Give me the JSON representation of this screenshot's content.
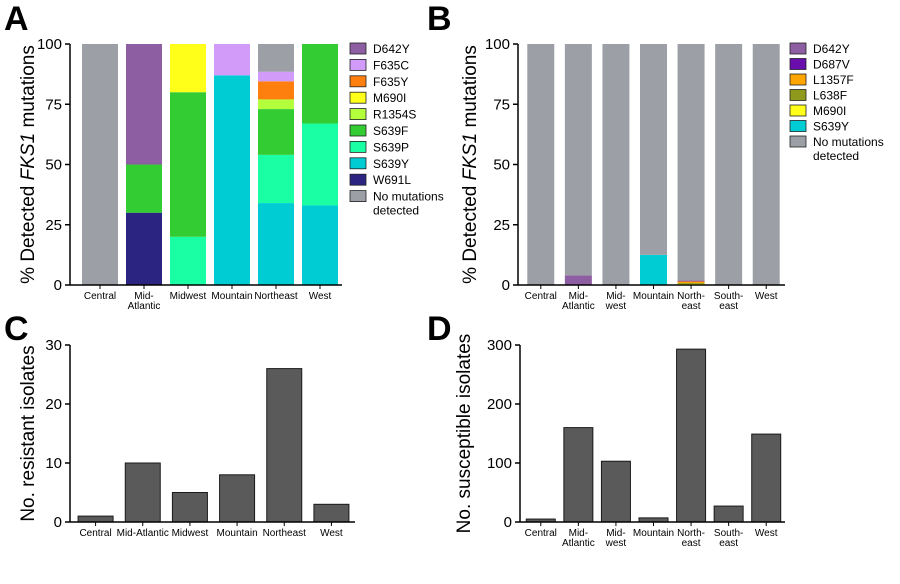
{
  "chart_data": [
    {
      "panel": "A",
      "type": "bar",
      "stacked": true,
      "ylabel_prefix": "% Detected ",
      "ylabel_gene": "FKS1",
      "ylabel_suffix": " mutations",
      "ylim": [
        0,
        100
      ],
      "yticks": [
        "0",
        "25",
        "50",
        "75",
        "100"
      ],
      "categories": [
        {
          "lines": [
            "Central"
          ]
        },
        {
          "lines": [
            "Mid-",
            "Atlantic"
          ]
        },
        {
          "lines": [
            "Midwest"
          ]
        },
        {
          "lines": [
            "Mountain"
          ]
        },
        {
          "lines": [
            "Northeast"
          ]
        },
        {
          "lines": [
            "West"
          ]
        }
      ],
      "legend_position": "right",
      "legend": [
        {
          "lines": [
            "D642Y"
          ],
          "color": "#8e5ea2"
        },
        {
          "lines": [
            "F635C"
          ],
          "color": "#d29bfa"
        },
        {
          "lines": [
            "F635Y"
          ],
          "color": "#ff7f0e"
        },
        {
          "lines": [
            "M690I"
          ],
          "color": "#ffff19"
        },
        {
          "lines": [
            "R1354S"
          ],
          "color": "#b3ff3c"
        },
        {
          "lines": [
            "S639F"
          ],
          "color": "#33cc33"
        },
        {
          "lines": [
            "S639P"
          ],
          "color": "#1affa3"
        },
        {
          "lines": [
            "S639Y"
          ],
          "color": "#00ccd4"
        },
        {
          "lines": [
            "W691L"
          ],
          "color": "#2b2480"
        },
        {
          "lines": [
            "No mutations",
            "detected"
          ],
          "color": "#9ca0a6"
        }
      ],
      "series": [
        {
          "name": "W691L",
          "values": [
            0,
            30,
            0,
            0,
            0,
            0
          ]
        },
        {
          "name": "S639Y",
          "values": [
            0,
            0,
            0,
            87,
            34,
            33
          ]
        },
        {
          "name": "S639P",
          "values": [
            0,
            0,
            20,
            0,
            20,
            34
          ]
        },
        {
          "name": "S639F",
          "values": [
            0,
            20,
            60,
            0,
            19,
            33
          ]
        },
        {
          "name": "R1354S",
          "values": [
            0,
            0,
            0,
            0,
            4,
            0
          ]
        },
        {
          "name": "M690I",
          "values": [
            0,
            0,
            20,
            0,
            0,
            0
          ]
        },
        {
          "name": "F635Y",
          "values": [
            0,
            0,
            0,
            0,
            7.5,
            0
          ]
        },
        {
          "name": "F635C",
          "values": [
            0,
            0,
            0,
            13,
            4,
            0
          ]
        },
        {
          "name": "D642Y",
          "values": [
            0,
            50,
            0,
            0,
            0,
            0
          ]
        },
        {
          "name": "No mutations detected",
          "values": [
            100,
            0,
            0,
            0,
            11.5,
            0
          ]
        }
      ]
    },
    {
      "panel": "B",
      "type": "bar",
      "stacked": true,
      "ylabel_prefix": "% Detected ",
      "ylabel_gene": "FKS1",
      "ylabel_suffix": " mutations",
      "ylim": [
        0,
        100
      ],
      "yticks": [
        "0",
        "25",
        "50",
        "75",
        "100"
      ],
      "categories": [
        {
          "lines": [
            "Central"
          ]
        },
        {
          "lines": [
            "Mid-",
            "Atlantic"
          ]
        },
        {
          "lines": [
            "Mid-",
            "west"
          ]
        },
        {
          "lines": [
            "Mountain"
          ]
        },
        {
          "lines": [
            "North-",
            "east"
          ]
        },
        {
          "lines": [
            "South-",
            "east"
          ]
        },
        {
          "lines": [
            "West"
          ]
        }
      ],
      "legend_position": "right",
      "legend": [
        {
          "lines": [
            "D642Y"
          ],
          "color": "#8e5ea2"
        },
        {
          "lines": [
            "D687V"
          ],
          "color": "#6a0dad"
        },
        {
          "lines": [
            "L1357F"
          ],
          "color": "#ffa500"
        },
        {
          "lines": [
            "L638F"
          ],
          "color": "#8f9a1c"
        },
        {
          "lines": [
            "M690I"
          ],
          "color": "#ffff19"
        },
        {
          "lines": [
            "S639Y"
          ],
          "color": "#00ccd4"
        },
        {
          "lines": [
            "No mutations",
            "detected"
          ],
          "color": "#9ca0a6"
        }
      ],
      "series": [
        {
          "name": "S639Y",
          "values": [
            0,
            0,
            0,
            12.5,
            0,
            0,
            0
          ]
        },
        {
          "name": "M690I",
          "values": [
            0,
            0,
            0,
            0,
            0.4,
            0,
            0
          ]
        },
        {
          "name": "L638F",
          "values": [
            0,
            0,
            0,
            0,
            0.4,
            0,
            0
          ]
        },
        {
          "name": "L1357F",
          "values": [
            0,
            0,
            0,
            0,
            0.7,
            0,
            0
          ]
        },
        {
          "name": "D687V",
          "values": [
            0,
            0,
            0,
            0,
            0.3,
            0,
            0
          ]
        },
        {
          "name": "D642Y",
          "values": [
            0,
            4,
            0,
            0,
            0,
            0,
            0
          ]
        },
        {
          "name": "No mutations detected",
          "values": [
            100,
            96,
            100,
            87.5,
            98.2,
            100,
            100
          ]
        }
      ]
    },
    {
      "panel": "C",
      "type": "bar",
      "ylabel": "No. resistant isolates",
      "ylim": [
        0,
        30
      ],
      "yticks": [
        "0",
        "10",
        "20",
        "30"
      ],
      "bar_color": "#5a5a5a",
      "categories": [
        {
          "lines": [
            "Central"
          ]
        },
        {
          "lines": [
            "Mid-Atlantic"
          ]
        },
        {
          "lines": [
            "Midwest"
          ]
        },
        {
          "lines": [
            "Mountain"
          ]
        },
        {
          "lines": [
            "Northeast"
          ]
        },
        {
          "lines": [
            "West"
          ]
        }
      ],
      "values": [
        1,
        10,
        5,
        8,
        26,
        3
      ]
    },
    {
      "panel": "D",
      "type": "bar",
      "ylabel": "No. susceptible isolates",
      "ylim": [
        0,
        300
      ],
      "yticks": [
        "0",
        "100",
        "200",
        "300"
      ],
      "bar_color": "#5a5a5a",
      "categories": [
        {
          "lines": [
            "Central"
          ]
        },
        {
          "lines": [
            "Mid-",
            "Atlantic"
          ]
        },
        {
          "lines": [
            "Mid-",
            "west"
          ]
        },
        {
          "lines": [
            "Mountain"
          ]
        },
        {
          "lines": [
            "North-",
            "east"
          ]
        },
        {
          "lines": [
            "South-",
            "east"
          ]
        },
        {
          "lines": [
            "West"
          ]
        }
      ],
      "values": [
        5,
        160,
        103,
        7,
        293,
        27,
        149
      ]
    }
  ]
}
